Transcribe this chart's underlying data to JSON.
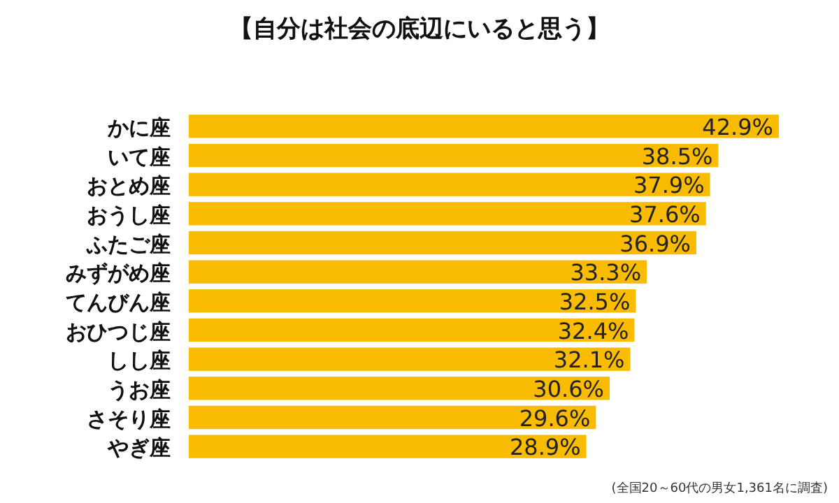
{
  "chart_data": {
    "type": "bar",
    "orientation": "horizontal",
    "title": "【自分は社会の底辺にいると思う】",
    "categories": [
      "かに座",
      "いて座",
      "おとめ座",
      "おうし座",
      "ふたご座",
      "みずがめ座",
      "てんびん座",
      "おひつじ座",
      "しし座",
      "うお座",
      "さそり座",
      "やぎ座"
    ],
    "values": [
      42.9,
      38.5,
      37.9,
      37.6,
      36.9,
      33.3,
      32.5,
      32.4,
      32.1,
      30.6,
      29.6,
      28.9
    ],
    "value_labels": [
      "42.9%",
      "38.5%",
      "37.9%",
      "37.6%",
      "36.9%",
      "33.3%",
      "32.5%",
      "32.4%",
      "32.1%",
      "30.6%",
      "29.6%",
      "28.9%"
    ],
    "color": "#f9bc00",
    "annotations": [
      "(全国20～60代の男女1,361名に調査)"
    ]
  }
}
